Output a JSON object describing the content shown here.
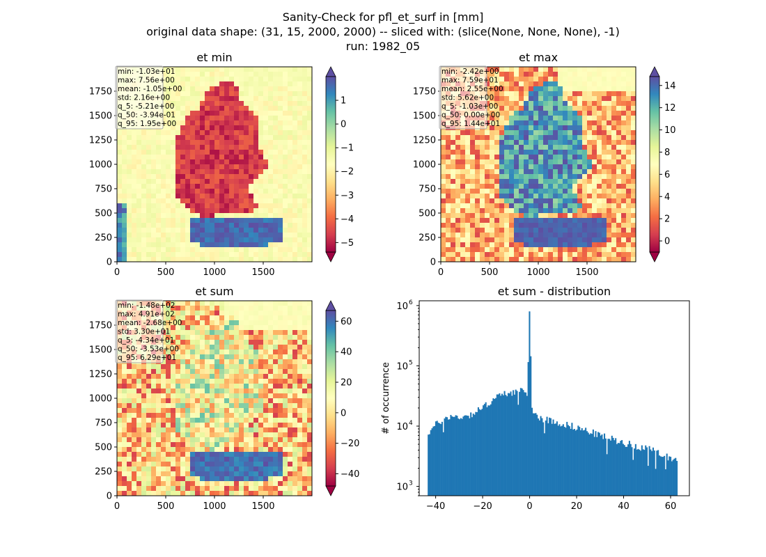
{
  "figure": {
    "title_lines": [
      "Sanity-Check for pfl_et_surf in [mm]",
      "original data shape: (31, 15, 2000, 2000) -- sliced with: (slice(None, None, None), -1)",
      "run: 1982_05"
    ]
  },
  "colors": {
    "hist_bar": "#1f77b4",
    "colormap": "Spectral",
    "cmap_stops": [
      "#9e0142",
      "#d53e4f",
      "#f46d43",
      "#fdae61",
      "#fee08b",
      "#ffffbf",
      "#e6f598",
      "#abdda4",
      "#66c2a5",
      "#3288bd",
      "#5e4fa2"
    ]
  },
  "chart_data": [
    {
      "type": "heatmap",
      "title": "et min",
      "x_ticks": [
        "0",
        "500",
        "1000",
        "1500"
      ],
      "y_ticks": [
        "0",
        "250",
        "500",
        "750",
        "1000",
        "1250",
        "1500",
        "1750"
      ],
      "xlim": [
        0,
        2000
      ],
      "ylim": [
        0,
        2000
      ],
      "colorbar": {
        "vmin": -5.4,
        "vmax": 2.0,
        "ticks": [
          "1",
          "0",
          "−1",
          "−2",
          "−3",
          "−4",
          "−5"
        ],
        "tick_values": [
          1,
          0,
          -1,
          -2,
          -3,
          -4,
          -5
        ],
        "extend": "both"
      },
      "stats": [
        "min: -1.03e+01",
        "max: 7.56e+00",
        "mean: -1.05e+00",
        "std: 2.16e+00",
        "q_5: -5.21e+00",
        "q_50: -3.94e-01",
        "q_95: 1.95e+00"
      ],
      "legend_position": "upper-left"
    },
    {
      "type": "heatmap",
      "title": "et max",
      "x_ticks": [
        "0",
        "500",
        "1000",
        "1500"
      ],
      "y_ticks": [
        "0",
        "250",
        "500",
        "750",
        "1000",
        "1250",
        "1500",
        "1750"
      ],
      "xlim": [
        0,
        2000
      ],
      "ylim": [
        0,
        2000
      ],
      "colorbar": {
        "vmin": -1.0,
        "vmax": 14.8,
        "ticks": [
          "14",
          "12",
          "10",
          "8",
          "6",
          "4",
          "2",
          "0"
        ],
        "tick_values": [
          14,
          12,
          10,
          8,
          6,
          4,
          2,
          0
        ],
        "extend": "both"
      },
      "stats": [
        "min: -2.42e+00",
        "max: 7.59e+01",
        "mean: 2.55e+00",
        "std: 5.62e+00",
        "q_5: -1.03e+00",
        "q_50: 0.00e+00",
        "q_95: 1.44e+01"
      ],
      "legend_position": "upper-left"
    },
    {
      "type": "heatmap",
      "title": "et sum",
      "x_ticks": [
        "0",
        "500",
        "1000",
        "1500"
      ],
      "y_ticks": [
        "0",
        "250",
        "500",
        "750",
        "1000",
        "1250",
        "1500",
        "1750"
      ],
      "xlim": [
        0,
        2000
      ],
      "ylim": [
        0,
        2000
      ],
      "colorbar": {
        "vmin": -48,
        "vmax": 67,
        "ticks": [
          "60",
          "40",
          "20",
          "0",
          "−20",
          "−40"
        ],
        "tick_values": [
          60,
          40,
          20,
          0,
          -20,
          -40
        ],
        "extend": "both"
      },
      "stats": [
        "min: -1.48e+02",
        "max: 4.91e+02",
        "mean: -2.68e+00",
        "std: 3.30e+01",
        "q_5: -4.34e+01",
        "q_50: -3.53e+00",
        "q_95: 6.29e+01"
      ],
      "legend_position": "upper-left"
    },
    {
      "type": "bar",
      "subtype": "histogram",
      "title": "et sum - distribution",
      "xlabel": "",
      "ylabel": "# of occurrence",
      "yscale": "log",
      "xlim": [
        -47,
        68
      ],
      "ylim": [
        700,
        1200000
      ],
      "x_ticks": [
        "−40",
        "−20",
        "0",
        "20",
        "40",
        "60"
      ],
      "x_tick_values": [
        -40,
        -20,
        0,
        20,
        40,
        60
      ],
      "y_ticks": [
        "10",
        "10",
        "10",
        "10"
      ],
      "y_tick_exponents": [
        "3",
        "4",
        "5",
        "6"
      ],
      "y_tick_values": [
        1000,
        10000,
        100000,
        1000000
      ],
      "bin_range": [
        -43.4,
        62.9
      ],
      "anchors_x": [
        -43.4,
        -40,
        -35,
        -30,
        -25,
        -20,
        -15,
        -10,
        -5,
        -1,
        0,
        1,
        5,
        10,
        20,
        30,
        40,
        50,
        62.9
      ],
      "anchors_y": [
        7500,
        10500,
        14500,
        14000,
        15500,
        20000,
        29000,
        35000,
        38000,
        36000,
        800000,
        17000,
        13500,
        12000,
        9500,
        7000,
        5300,
        4200,
        2700
      ]
    }
  ]
}
